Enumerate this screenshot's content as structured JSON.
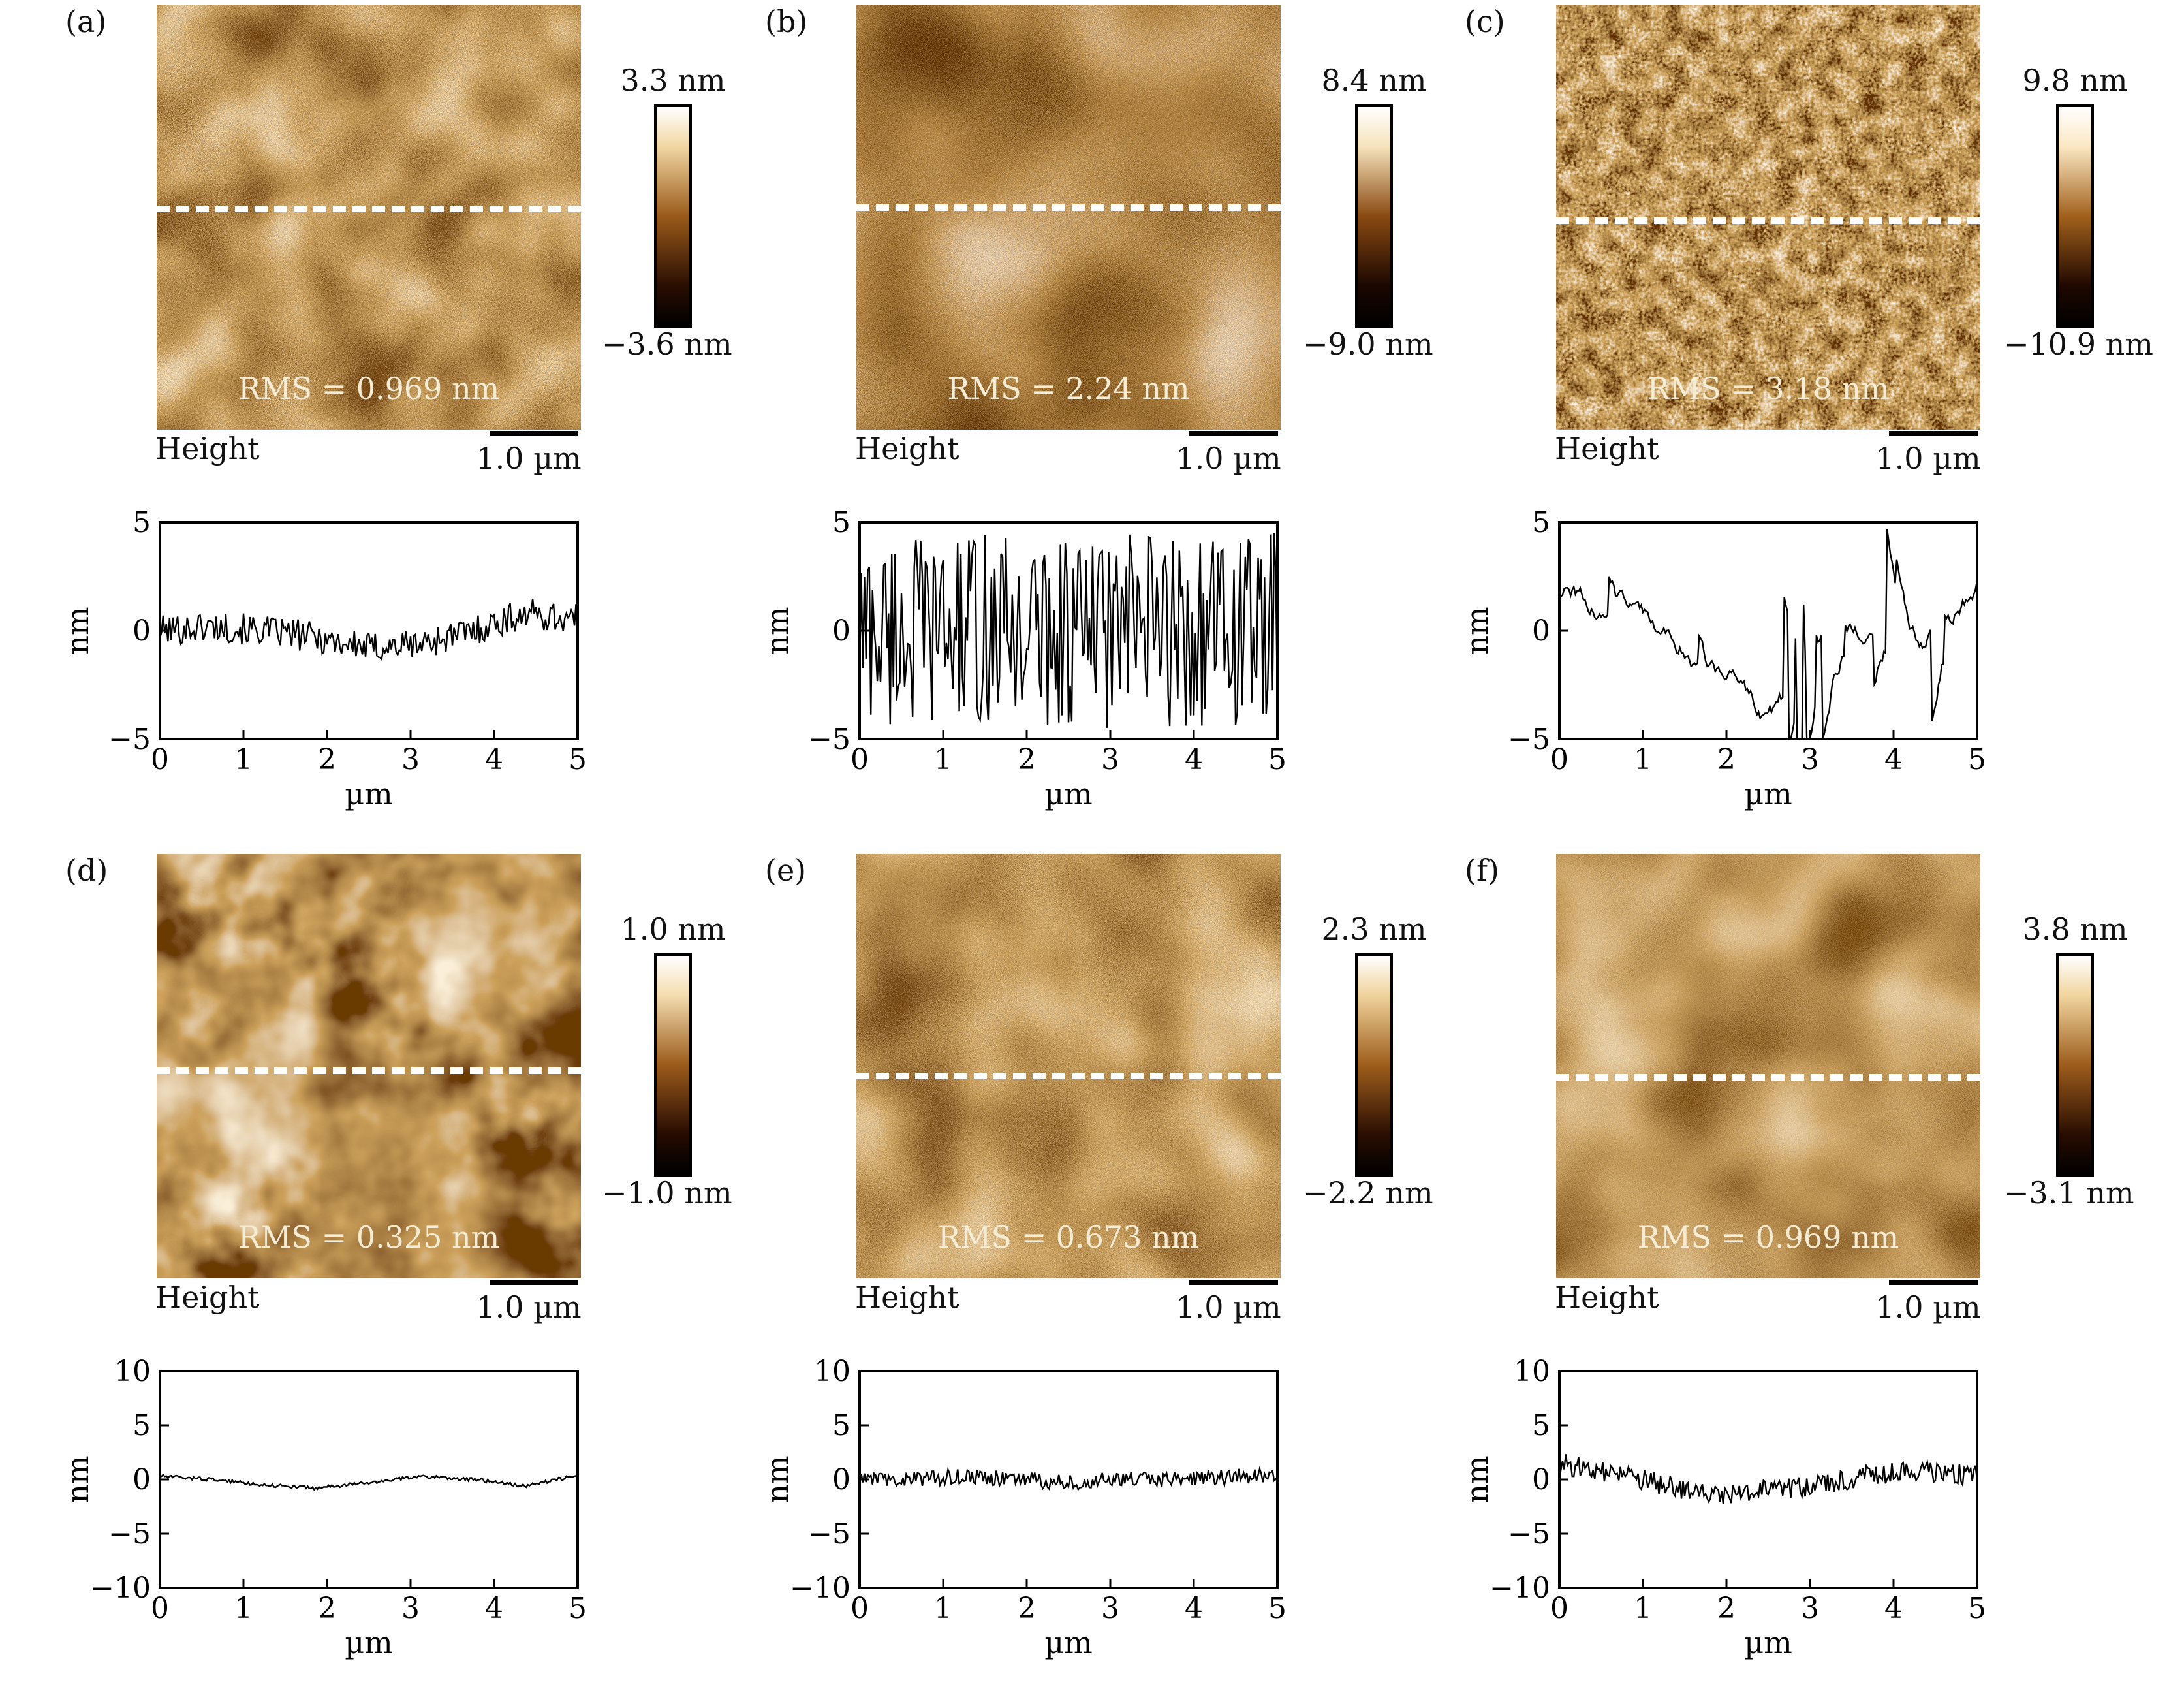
{
  "panels": [
    {
      "label": "(a)",
      "rms": "RMS = 0.969 nm",
      "height_label": "Height",
      "scale_label": "1.0 µm",
      "cbar_max": "3.3 nm",
      "cbar_min": "−3.6 nm",
      "style": {
        "dark": "#2a0e02",
        "mid": "#9a5a1a",
        "light": "#f2d7a3",
        "freq": "0.9",
        "blob": "0.008"
      },
      "profile": {
        "ylabel": "nm",
        "xlabel": "µm",
        "ylim": [
          -5,
          5
        ],
        "yticks": [
          "5",
          "0",
          "−5"
        ],
        "xticks": [
          "0",
          "1",
          "2",
          "3",
          "4",
          "5"
        ],
        "amp": 0.9,
        "base": [
          0,
          0.2,
          0,
          -0.3,
          -0.8,
          -0.6,
          0,
          0.8,
          0.5
        ]
      }
    },
    {
      "label": "(b)",
      "rms": "RMS = 2.24 nm",
      "height_label": "Height",
      "scale_label": "1.0 µm",
      "cbar_max": "8.4 nm",
      "cbar_min": "−9.0 nm",
      "style": {
        "dark": "#1b0700",
        "mid": "#8a4a12",
        "light": "#f7e3bc",
        "freq": "1.2",
        "blob": "0.004"
      },
      "profile": {
        "ylabel": "nm",
        "xlabel": "µm",
        "ylim": [
          -5,
          5
        ],
        "yticks": [
          "5",
          "0",
          "−5"
        ],
        "xticks": [
          "0",
          "1",
          "2",
          "3",
          "4",
          "5"
        ],
        "amp": 4.5,
        "base": [
          0,
          0,
          0,
          0,
          0,
          0,
          0,
          0,
          0
        ]
      }
    },
    {
      "label": "(c)",
      "rms": "RMS = 3.18 nm",
      "height_label": "Height",
      "scale_label": "1.0 µm",
      "cbar_max": "9.8 nm",
      "cbar_min": "−10.9 nm",
      "style": {
        "dark": "#1f0800",
        "mid": "#a2611c",
        "light": "#fbe8c4",
        "freq": "0.22",
        "blob": "0.03"
      },
      "profile": {
        "ylabel": "nm",
        "xlabel": "µm",
        "ylim": [
          -5,
          5
        ],
        "yticks": [
          "5",
          "0",
          "−5"
        ],
        "xticks": [
          "0",
          "1",
          "2",
          "3",
          "4",
          "5"
        ],
        "amp": 5.2,
        "base": [
          2,
          1,
          0,
          -2,
          -4,
          -1,
          0,
          -1,
          2
        ]
      }
    },
    {
      "label": "(d)",
      "rms": "RMS = 0.325 nm",
      "height_label": "Height",
      "scale_label": "1.0 µm",
      "cbar_max": "1.0 nm",
      "cbar_min": "−1.0 nm",
      "style": {
        "dark": "#260b01",
        "mid": "#9b5b1b",
        "light": "#f4ddb0",
        "freq": "0.012",
        "blob": "0.004"
      },
      "profile": {
        "ylabel": "nm",
        "xlabel": "µm",
        "ylim": [
          -10,
          10
        ],
        "yticks": [
          "10",
          "5",
          "0",
          "−5",
          "−10"
        ],
        "xticks": [
          "0",
          "1",
          "2",
          "3",
          "4",
          "5"
        ],
        "amp": 0.2,
        "base": [
          0.3,
          0,
          -0.5,
          -0.8,
          -0.3,
          0.3,
          0,
          -0.6,
          0.4
        ]
      }
    },
    {
      "label": "(e)",
      "rms": "RMS = 0.673 nm",
      "height_label": "Height",
      "scale_label": "1.0 µm",
      "cbar_max": "2.3 nm",
      "cbar_min": "−2.2 nm",
      "style": {
        "dark": "#2a0e02",
        "mid": "#9e5e1c",
        "light": "#f0d39c",
        "freq": "1.1",
        "blob": "0.006"
      },
      "profile": {
        "ylabel": "nm",
        "xlabel": "µm",
        "ylim": [
          -10,
          10
        ],
        "yticks": [
          "10",
          "5",
          "0",
          "−5",
          "−10"
        ],
        "xticks": [
          "0",
          "1",
          "2",
          "3",
          "4",
          "5"
        ],
        "amp": 0.9,
        "base": [
          0,
          0,
          0.3,
          0,
          -0.3,
          0,
          0,
          0.2,
          0.5
        ]
      }
    },
    {
      "label": "(f)",
      "rms": "RMS = 0.969 nm",
      "height_label": "Height",
      "scale_label": "1.0 µm",
      "cbar_max": "3.8 nm",
      "cbar_min": "−3.1 nm",
      "style": {
        "dark": "#280d01",
        "mid": "#9d5d1c",
        "light": "#f1d6a0",
        "freq": "1.0",
        "blob": "0.006"
      },
      "profile": {
        "ylabel": "nm",
        "xlabel": "µm",
        "ylim": [
          -10,
          10
        ],
        "yticks": [
          "10",
          "5",
          "0",
          "−5",
          "−10"
        ],
        "xticks": [
          "0",
          "1",
          "2",
          "3",
          "4",
          "5"
        ],
        "amp": 1.2,
        "base": [
          1.5,
          0.5,
          -0.5,
          -1.5,
          -1,
          -0.5,
          0.5,
          0.8,
          0.3
        ]
      }
    }
  ]
}
